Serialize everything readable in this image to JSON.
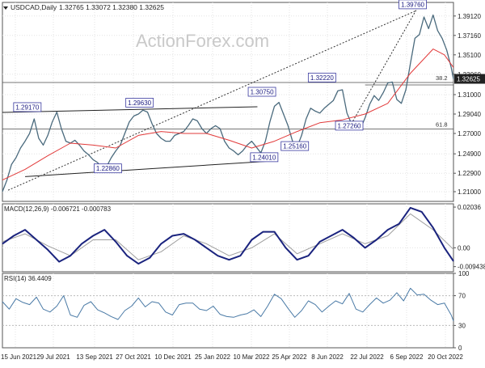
{
  "chart_data": {
    "type": "line",
    "title": "USDCAD,Daily",
    "ohlc_values": "1.32765 1.33072 1.32380 1.32625",
    "watermark": "ActionForex.com",
    "x_tick_labels": [
      "15 Jun 2021",
      "29 Jul 2021",
      "13 Sep 2021",
      "27 Oct 2021",
      "10 Dec 2021",
      "25 Jan 2022",
      "10 Mar 2022",
      "25 Apr 2022",
      "8 Jun 2022",
      "22 Jul 2022",
      "6 Sep 2022",
      "20 Oct 2022"
    ],
    "price_panel": {
      "y_ticks": [
        1.21,
        1.229,
        1.249,
        1.27,
        1.29,
        1.31,
        1.331,
        1.351,
        1.371,
        1.391
      ],
      "y_tick_labels": [
        "1.21000",
        "1.22900",
        "1.24900",
        "1.27000",
        "1.29040",
        "1.31000",
        "1.33060",
        "1.35100",
        "1.37160",
        "1.39120"
      ],
      "ylim": [
        1.2,
        1.405
      ],
      "current_price_label": "1.32625",
      "current_price": 1.32625,
      "annotations": [
        {
          "label": "1.39760",
          "x": 362,
          "y": 1.3976
        },
        {
          "label": "1.32220",
          "x": 282,
          "y": 1.3222
        },
        {
          "label": "1.30750",
          "x": 229,
          "y": 1.3075
        },
        {
          "label": "1.29630",
          "x": 121,
          "y": 1.2963
        },
        {
          "label": "1.29170",
          "x": 22,
          "y": 1.2917
        },
        {
          "label": "1.27260",
          "x": 306,
          "y": 1.2726
        },
        {
          "label": "1.25160",
          "x": 258,
          "y": 1.2516
        },
        {
          "label": "1.24010",
          "x": 231,
          "y": 1.2401
        },
        {
          "label": "1.22860",
          "x": 93,
          "y": 1.2286
        }
      ],
      "fib_labels": [
        {
          "label": "61.8",
          "y": 1.2745
        },
        {
          "label": "38.2",
          "y": 1.3225
        }
      ],
      "series": [
        {
          "name": "Price",
          "color": "#4a6a7d",
          "x": [
            0,
            4,
            8,
            12,
            16,
            20,
            24,
            28,
            32,
            36,
            40,
            44,
            48,
            52,
            56,
            60,
            64,
            68,
            72,
            76,
            80,
            84,
            88,
            92,
            96,
            100,
            104,
            108,
            112,
            116,
            120,
            124,
            128,
            132,
            136,
            140,
            144,
            148,
            152,
            156,
            160,
            164,
            168,
            172,
            176,
            180,
            184,
            188,
            192,
            196,
            200,
            204,
            208,
            212,
            216,
            220,
            224,
            228,
            232,
            236,
            240,
            244,
            248,
            252,
            256,
            260,
            264,
            268,
            272,
            276,
            280,
            284,
            288,
            292,
            296,
            300,
            304,
            308,
            312,
            316,
            320,
            324,
            328,
            332,
            336,
            340,
            344,
            348,
            352,
            356,
            360,
            364,
            368,
            372,
            376,
            380,
            384,
            388,
            392,
            396,
            398
          ],
          "y": [
            1.21,
            1.222,
            1.238,
            1.245,
            1.255,
            1.262,
            1.27,
            1.285,
            1.265,
            1.258,
            1.268,
            1.282,
            1.292,
            1.275,
            1.262,
            1.26,
            1.263,
            1.258,
            1.252,
            1.248,
            1.243,
            1.24,
            1.232,
            1.236,
            1.245,
            1.252,
            1.258,
            1.27,
            1.282,
            1.288,
            1.29,
            1.294,
            1.292,
            1.28,
            1.27,
            1.265,
            1.262,
            1.262,
            1.268,
            1.27,
            1.272,
            1.278,
            1.285,
            1.283,
            1.275,
            1.27,
            1.275,
            1.278,
            1.275,
            1.262,
            1.255,
            1.252,
            1.248,
            1.252,
            1.258,
            1.262,
            1.256,
            1.25,
            1.262,
            1.282,
            1.298,
            1.302,
            1.29,
            1.278,
            1.262,
            1.256,
            1.268,
            1.285,
            1.296,
            1.293,
            1.291,
            1.296,
            1.3,
            1.304,
            1.314,
            1.315,
            1.291,
            1.28,
            1.276,
            1.275,
            1.286,
            1.3,
            1.309,
            1.304,
            1.312,
            1.322,
            1.323,
            1.305,
            1.301,
            1.315,
            1.342,
            1.368,
            1.372,
            1.39,
            1.378,
            1.392,
            1.376,
            1.368,
            1.356,
            1.338,
            1.326
          ]
        },
        {
          "name": "Moving Average",
          "color": "#e23a3a",
          "x": [
            0,
            20,
            40,
            60,
            80,
            100,
            120,
            140,
            160,
            180,
            200,
            220,
            240,
            260,
            280,
            300,
            320,
            340,
            360,
            380,
            390,
            398
          ],
          "y": [
            1.222,
            1.233,
            1.247,
            1.26,
            1.258,
            1.255,
            1.268,
            1.272,
            1.27,
            1.27,
            1.263,
            1.255,
            1.262,
            1.272,
            1.281,
            1.284,
            1.29,
            1.301,
            1.332,
            1.357,
            1.351,
            1.338
          ]
        }
      ],
      "trend_lines": [
        {
          "name": "Upper channel",
          "x": [
            0,
            225
          ],
          "y": [
            1.2917,
            1.2975
          ]
        },
        {
          "name": "Lower channel",
          "x": [
            20,
            240
          ],
          "y": [
            1.2255,
            1.2418
          ]
        },
        {
          "name": "Dotted trend line",
          "x": [
            5,
            365
          ],
          "y": [
            1.2115,
            1.3965
          ]
        },
        {
          "name": "Dotted trend line 2",
          "x": [
            305,
            365
          ],
          "y": [
            1.274,
            1.397
          ]
        },
        {
          "name": "Horizontal 61.8",
          "x": [
            0,
            398
          ],
          "y": [
            1.2745,
            1.2745
          ]
        },
        {
          "name": "Horizontal 38.2",
          "x": [
            0,
            398
          ],
          "y": [
            1.3225,
            1.3225
          ]
        },
        {
          "name": "Horizontal 2",
          "x": [
            320,
            398
          ],
          "y": [
            1.32,
            1.32
          ]
        }
      ]
    },
    "macd_panel": {
      "title": "MACD(12,26,9) -0.006721 -0.000783",
      "y_tick_labels": [
        "0.02036",
        "0.00",
        "-0.009438"
      ],
      "ylim": [
        -0.012,
        0.022
      ],
      "series": [
        {
          "name": "MACD",
          "color": "#1a237e",
          "x": [
            0,
            10,
            20,
            30,
            40,
            50,
            60,
            70,
            80,
            90,
            100,
            110,
            120,
            130,
            140,
            150,
            160,
            170,
            180,
            190,
            200,
            210,
            220,
            230,
            240,
            250,
            260,
            270,
            280,
            290,
            300,
            310,
            320,
            330,
            340,
            350,
            360,
            370,
            380,
            390,
            398
          ],
          "y": [
            0.002,
            0.006,
            0.009,
            0.004,
            -0.001,
            -0.007,
            -0.004,
            0.002,
            0.006,
            0.009,
            0.003,
            -0.004,
            -0.008,
            -0.005,
            0.002,
            0.006,
            0.007,
            0.004,
            0.0,
            -0.004,
            -0.006,
            -0.004,
            0.004,
            0.008,
            0.008,
            0.0,
            -0.006,
            -0.004,
            0.003,
            0.006,
            0.009,
            0.005,
            0.0,
            0.004,
            0.009,
            0.012,
            0.02,
            0.018,
            0.01,
            0.0,
            -0.0067
          ]
        },
        {
          "name": "Signal",
          "color": "#9e9e9e",
          "x": [
            0,
            20,
            40,
            60,
            80,
            100,
            120,
            140,
            160,
            180,
            200,
            220,
            240,
            260,
            280,
            300,
            320,
            340,
            360,
            380,
            398
          ],
          "y": [
            0.003,
            0.007,
            0.001,
            -0.004,
            0.004,
            0.004,
            -0.006,
            -0.002,
            0.006,
            0.002,
            -0.004,
            0.0,
            0.007,
            -0.003,
            0.002,
            0.007,
            0.002,
            0.006,
            0.017,
            0.009,
            -0.0008
          ]
        }
      ]
    },
    "rsi_panel": {
      "title": "RSI(14) 36.4409",
      "y_tick_labels": [
        "100",
        "70",
        "30",
        "0"
      ],
      "ylim": [
        0,
        100
      ],
      "levels": [
        70,
        30
      ],
      "series": [
        {
          "name": "RSI",
          "color": "#4a7aa6",
          "x": [
            0,
            6,
            12,
            18,
            24,
            30,
            36,
            42,
            48,
            54,
            60,
            66,
            72,
            78,
            84,
            90,
            96,
            102,
            108,
            114,
            120,
            126,
            132,
            138,
            144,
            150,
            156,
            162,
            168,
            174,
            180,
            186,
            192,
            198,
            204,
            210,
            216,
            222,
            228,
            234,
            240,
            246,
            252,
            258,
            264,
            270,
            276,
            282,
            288,
            294,
            300,
            306,
            312,
            318,
            324,
            330,
            336,
            342,
            348,
            354,
            360,
            366,
            372,
            378,
            384,
            390,
            396,
            398
          ],
          "y": [
            62,
            52,
            66,
            61,
            58,
            68,
            52,
            48,
            56,
            70,
            44,
            41,
            57,
            62,
            51,
            47,
            42,
            38,
            50,
            56,
            67,
            55,
            62,
            60,
            48,
            44,
            58,
            60,
            60,
            52,
            50,
            56,
            45,
            42,
            41,
            44,
            46,
            51,
            42,
            56,
            72,
            66,
            53,
            41,
            50,
            63,
            58,
            48,
            56,
            63,
            59,
            73,
            52,
            48,
            58,
            67,
            60,
            64,
            74,
            63,
            80,
            71,
            72,
            64,
            58,
            60,
            44,
            36
          ]
        }
      ]
    }
  }
}
